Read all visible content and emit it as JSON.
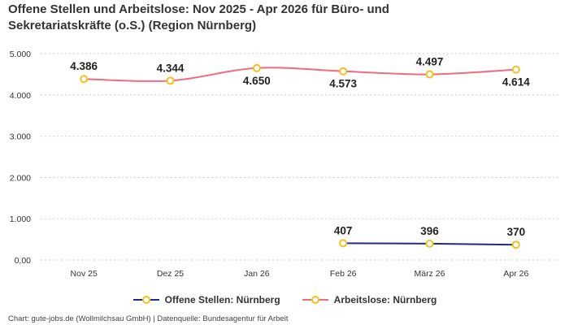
{
  "chart_data": {
    "type": "line",
    "title_line1": "Offene Stellen und Arbeitslose: Nov 2025 - Apr 2026 für Büro- und",
    "title_line2": "Sekretariatskräfte (o.S.) (Region Nürnberg)",
    "categories": [
      "Nov 25",
      "Dez 25",
      "Jan 26",
      "Feb 26",
      "März 26",
      "Apr 26"
    ],
    "yticks": [
      "0,00",
      "1.000",
      "2.000",
      "3.000",
      "4.000",
      "5.000"
    ],
    "ylim": [
      0,
      5000
    ],
    "grid": true,
    "legend_position": "bottom",
    "series": [
      {
        "name": "Offene Stellen: Nürnberg",
        "color": "#1f2a8a",
        "values": [
          null,
          null,
          null,
          407,
          396,
          370
        ],
        "labels": [
          "",
          "",
          "",
          "407",
          "396",
          "370"
        ]
      },
      {
        "name": "Arbeitslose: Nürnberg",
        "color": "#f06b7f",
        "values": [
          4386,
          4344,
          4650,
          4573,
          4497,
          4614
        ],
        "labels": [
          "4.386",
          "4.344",
          "4.650",
          "4.573",
          "4.497",
          "4.614"
        ]
      }
    ],
    "marker_color": "#f2c21b"
  },
  "footer": "Chart: gute-jobs.de (Wollmilchsau GmbH) | Datenquelle: Bundesagentur für Arbeit"
}
